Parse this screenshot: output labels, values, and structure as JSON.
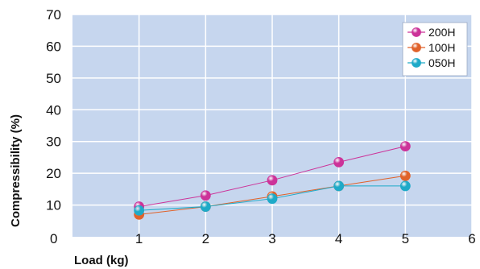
{
  "chart_data": {
    "type": "line",
    "xlabel": "Load (kg)",
    "ylabel": "Compressibility (%)",
    "xlim": [
      0,
      6
    ],
    "ylim": [
      0,
      70
    ],
    "x_ticks": [
      "0",
      "1",
      "2",
      "3",
      "4",
      "5",
      "6"
    ],
    "y_ticks": [
      "0",
      "10",
      "20",
      "30",
      "40",
      "50",
      "60",
      "70"
    ],
    "grid": true,
    "legend_position": "top-right",
    "background_color": "#c6d6ee",
    "grid_color": "#ffffff",
    "x": [
      1,
      2,
      3,
      4,
      5
    ],
    "series": [
      {
        "name": "200H",
        "color": "#cc3399",
        "values": [
          9.5,
          13,
          17.8,
          23.5,
          28.5
        ]
      },
      {
        "name": "100H",
        "color": "#e0622a",
        "values": [
          7,
          9.5,
          12.7,
          16,
          19.2
        ]
      },
      {
        "name": "050H",
        "color": "#1eaac8",
        "values": [
          8.3,
          9.5,
          12,
          16,
          16
        ]
      }
    ]
  }
}
